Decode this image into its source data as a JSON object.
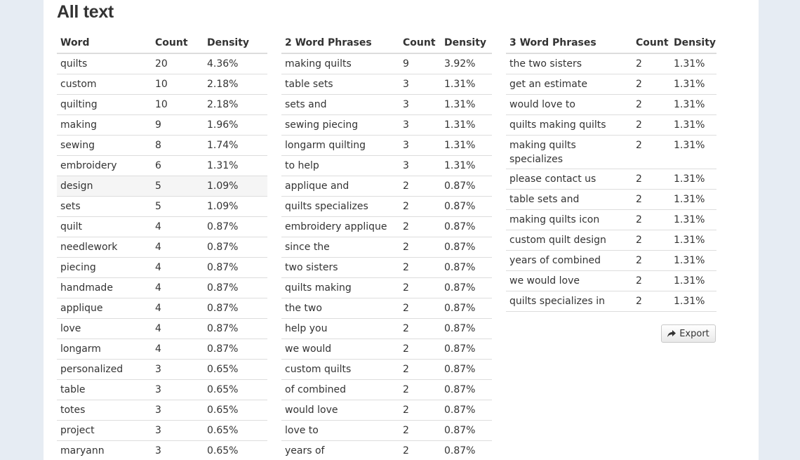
{
  "title": "All text",
  "export_label": "Export",
  "tables": {
    "single": {
      "headers": [
        "Word",
        "Count",
        "Density"
      ],
      "rows": [
        [
          "quilts",
          "20",
          "4.36%"
        ],
        [
          "custom",
          "10",
          "2.18%"
        ],
        [
          "quilting",
          "10",
          "2.18%"
        ],
        [
          "making",
          "9",
          "1.96%"
        ],
        [
          "sewing",
          "8",
          "1.74%"
        ],
        [
          "embroidery",
          "6",
          "1.31%"
        ],
        [
          "design",
          "5",
          "1.09%"
        ],
        [
          "sets",
          "5",
          "1.09%"
        ],
        [
          "quilt",
          "4",
          "0.87%"
        ],
        [
          "needlework",
          "4",
          "0.87%"
        ],
        [
          "piecing",
          "4",
          "0.87%"
        ],
        [
          "handmade",
          "4",
          "0.87%"
        ],
        [
          "applique",
          "4",
          "0.87%"
        ],
        [
          "love",
          "4",
          "0.87%"
        ],
        [
          "longarm",
          "4",
          "0.87%"
        ],
        [
          "personalized",
          "3",
          "0.65%"
        ],
        [
          "table",
          "3",
          "0.65%"
        ],
        [
          "totes",
          "3",
          "0.65%"
        ],
        [
          "project",
          "3",
          "0.65%"
        ],
        [
          "maryann",
          "3",
          "0.65%"
        ]
      ]
    },
    "two_word": {
      "headers": [
        "2 Word Phrases",
        "Count",
        "Density"
      ],
      "rows": [
        [
          "making quilts",
          "9",
          "3.92%"
        ],
        [
          "table sets",
          "3",
          "1.31%"
        ],
        [
          "sets and",
          "3",
          "1.31%"
        ],
        [
          "sewing piecing",
          "3",
          "1.31%"
        ],
        [
          "longarm quilting",
          "3",
          "1.31%"
        ],
        [
          "to help",
          "3",
          "1.31%"
        ],
        [
          "applique and",
          "2",
          "0.87%"
        ],
        [
          "quilts specializes",
          "2",
          "0.87%"
        ],
        [
          "embroidery applique",
          "2",
          "0.87%"
        ],
        [
          "since the",
          "2",
          "0.87%"
        ],
        [
          "two sisters",
          "2",
          "0.87%"
        ],
        [
          "quilts making",
          "2",
          "0.87%"
        ],
        [
          "the two",
          "2",
          "0.87%"
        ],
        [
          "help you",
          "2",
          "0.87%"
        ],
        [
          "we would",
          "2",
          "0.87%"
        ],
        [
          "custom quilts",
          "2",
          "0.87%"
        ],
        [
          "of combined",
          "2",
          "0.87%"
        ],
        [
          "would love",
          "2",
          "0.87%"
        ],
        [
          "love to",
          "2",
          "0.87%"
        ],
        [
          "years of",
          "2",
          "0.87%"
        ]
      ]
    },
    "three_word": {
      "headers": [
        "3 Word Phrases",
        "Count",
        "Density"
      ],
      "rows": [
        [
          "the two sisters",
          "2",
          "1.31%"
        ],
        [
          "get an estimate",
          "2",
          "1.31%"
        ],
        [
          "would love to",
          "2",
          "1.31%"
        ],
        [
          "quilts making quilts",
          "2",
          "1.31%"
        ],
        [
          "making quilts specializes",
          "2",
          "1.31%"
        ],
        [
          "please contact us",
          "2",
          "1.31%"
        ],
        [
          "table sets and",
          "2",
          "1.31%"
        ],
        [
          "making quilts icon",
          "2",
          "1.31%"
        ],
        [
          "custom quilt design",
          "2",
          "1.31%"
        ],
        [
          "years of combined",
          "2",
          "1.31%"
        ],
        [
          "we would love",
          "2",
          "1.31%"
        ],
        [
          "quilts specializes in",
          "2",
          "1.31%"
        ]
      ]
    }
  }
}
